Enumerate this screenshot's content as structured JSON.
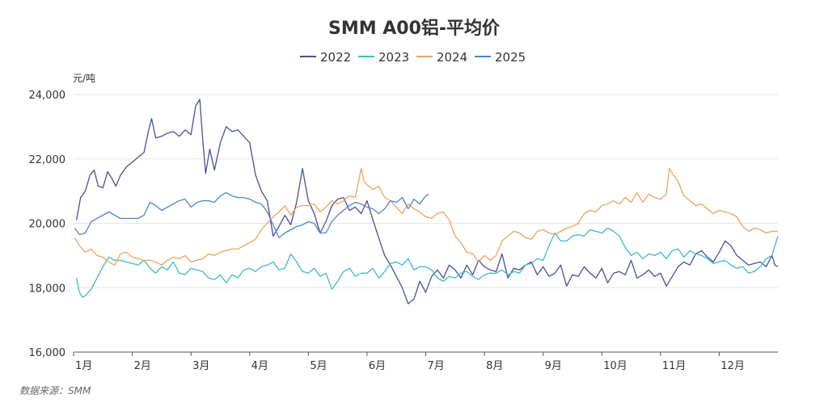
{
  "chart_data": {
    "type": "line",
    "title": "SMM A00铝-平均价",
    "y_unit": "元/吨",
    "ylim": [
      16000,
      24000
    ],
    "y_ticks": [
      16000,
      18000,
      20000,
      22000,
      24000
    ],
    "y_tick_labels": [
      "16,000",
      "18,000",
      "20,000",
      "22,000",
      "24,000"
    ],
    "x_unit": "month",
    "xlim": [
      1,
      13
    ],
    "x_ticks": [
      1,
      2,
      3,
      4,
      5,
      6,
      7,
      8,
      9,
      10,
      11,
      12
    ],
    "x_tick_labels": [
      "1月",
      "2月",
      "3月",
      "4月",
      "5月",
      "6月",
      "7月",
      "8月",
      "9月",
      "10月",
      "11月",
      "12月"
    ],
    "grid": true,
    "legend_position": "top-center",
    "source": "数据来源：SMM",
    "series": [
      {
        "name": "2022",
        "color": "#4a4f9a",
        "x": [
          1.05,
          1.12,
          1.2,
          1.28,
          1.35,
          1.42,
          1.5,
          1.58,
          1.65,
          1.72,
          1.8,
          1.9,
          2.0,
          2.1,
          2.2,
          2.28,
          2.33,
          2.4,
          2.5,
          2.6,
          2.7,
          2.8,
          2.9,
          3.0,
          3.08,
          3.15,
          3.2,
          3.25,
          3.32,
          3.4,
          3.5,
          3.6,
          3.7,
          3.8,
          3.9,
          4.0,
          4.1,
          4.2,
          4.3,
          4.4,
          4.5,
          4.6,
          4.7,
          4.8,
          4.9,
          5.0,
          5.1,
          5.2,
          5.3,
          5.4,
          5.5,
          5.6,
          5.7,
          5.8,
          5.9,
          6.0,
          6.1,
          6.2,
          6.3,
          6.4,
          6.5,
          6.6,
          6.7,
          6.8,
          6.9,
          7.0,
          7.1,
          7.2,
          7.3,
          7.4,
          7.5,
          7.6,
          7.7,
          7.8,
          7.9,
          8.0,
          8.1,
          8.2,
          8.3,
          8.4,
          8.5,
          8.6,
          8.7,
          8.8,
          8.9,
          9.0,
          9.1,
          9.2,
          9.3,
          9.4,
          9.5,
          9.6,
          9.7,
          9.8,
          9.9,
          10.0,
          10.1,
          10.2,
          10.3,
          10.4,
          10.5,
          10.6,
          10.7,
          10.8,
          10.9,
          11.0,
          11.1,
          11.2,
          11.3,
          11.4,
          11.5,
          11.6,
          11.7,
          11.8,
          11.9,
          12.0,
          12.1,
          12.2,
          12.3,
          12.4,
          12.5,
          12.6,
          12.7,
          12.8,
          12.9,
          12.95,
          13.0
        ],
        "values": [
          20100,
          20800,
          21000,
          21500,
          21650,
          21150,
          21100,
          21600,
          21400,
          21150,
          21500,
          21750,
          21900,
          22050,
          22200,
          22900,
          23250,
          22650,
          22700,
          22800,
          22850,
          22700,
          22900,
          22750,
          23650,
          23850,
          22600,
          21550,
          22300,
          21650,
          22500,
          23000,
          22850,
          22900,
          22700,
          22500,
          21500,
          21000,
          20700,
          19600,
          19900,
          20250,
          19950,
          20650,
          21700,
          20700,
          20300,
          19700,
          20050,
          20550,
          20750,
          20800,
          20400,
          20500,
          20300,
          20700,
          20100,
          19550,
          19000,
          18700,
          18350,
          18000,
          17500,
          17650,
          18200,
          17850,
          18350,
          18550,
          18300,
          18700,
          18550,
          18300,
          18700,
          18400,
          18850,
          18650,
          18550,
          18500,
          19050,
          18300,
          18600,
          18550,
          18700,
          18800,
          18400,
          18650,
          18350,
          18450,
          18700,
          18050,
          18400,
          18350,
          18650,
          18450,
          18300,
          18600,
          18150,
          18450,
          18500,
          18400,
          18850,
          18300,
          18400,
          18550,
          18350,
          18450,
          18050,
          18350,
          18650,
          18800,
          18700,
          19050,
          19150,
          18950,
          18800,
          19100,
          19450,
          19300,
          19000,
          18850,
          18700,
          18750,
          18800,
          18650,
          19000,
          18700,
          18650
        ]
      },
      {
        "name": "2023",
        "color": "#40b9c6",
        "x": [
          1.05,
          1.1,
          1.15,
          1.2,
          1.3,
          1.4,
          1.5,
          1.6,
          1.7,
          1.8,
          1.9,
          2.0,
          2.1,
          2.2,
          2.3,
          2.4,
          2.5,
          2.6,
          2.7,
          2.8,
          2.9,
          3.0,
          3.1,
          3.2,
          3.3,
          3.4,
          3.5,
          3.6,
          3.7,
          3.8,
          3.9,
          4.0,
          4.1,
          4.2,
          4.3,
          4.4,
          4.5,
          4.6,
          4.7,
          4.8,
          4.9,
          5.0,
          5.1,
          5.2,
          5.3,
          5.4,
          5.5,
          5.6,
          5.7,
          5.8,
          5.9,
          6.0,
          6.1,
          6.2,
          6.3,
          6.4,
          6.5,
          6.6,
          6.7,
          6.8,
          6.9,
          7.0,
          7.1,
          7.2,
          7.3,
          7.4,
          7.5,
          7.6,
          7.7,
          7.8,
          7.9,
          8.0,
          8.1,
          8.2,
          8.3,
          8.4,
          8.5,
          8.6,
          8.7,
          8.8,
          8.9,
          9.0,
          9.1,
          9.2,
          9.3,
          9.4,
          9.5,
          9.6,
          9.7,
          9.8,
          9.9,
          10.0,
          10.1,
          10.2,
          10.3,
          10.4,
          10.5,
          10.6,
          10.7,
          10.8,
          10.9,
          11.0,
          11.1,
          11.2,
          11.3,
          11.4,
          11.5,
          11.6,
          11.7,
          11.8,
          11.9,
          12.0,
          12.1,
          12.2,
          12.3,
          12.4,
          12.5,
          12.6,
          12.7,
          12.8,
          12.9,
          13.0
        ],
        "values": [
          18300,
          17850,
          17700,
          17750,
          17950,
          18300,
          18650,
          18950,
          18850,
          18850,
          18800,
          18750,
          18700,
          18850,
          18600,
          18450,
          18650,
          18550,
          18800,
          18450,
          18400,
          18600,
          18550,
          18500,
          18300,
          18250,
          18400,
          18150,
          18400,
          18300,
          18550,
          18600,
          18500,
          18650,
          18700,
          18800,
          18550,
          18600,
          19050,
          18800,
          18500,
          18450,
          18600,
          18350,
          18450,
          17950,
          18200,
          18500,
          18600,
          18350,
          18450,
          18450,
          18600,
          18300,
          18500,
          18750,
          18800,
          18700,
          18900,
          18550,
          18650,
          18650,
          18550,
          18300,
          18200,
          18350,
          18300,
          18450,
          18500,
          18350,
          18250,
          18400,
          18450,
          18450,
          18550,
          18400,
          18500,
          18450,
          18700,
          18750,
          18900,
          18850,
          19300,
          19700,
          19450,
          19450,
          19600,
          19650,
          19600,
          19800,
          19750,
          19700,
          19850,
          19750,
          19600,
          19250,
          19000,
          19100,
          18900,
          19050,
          19000,
          19100,
          18900,
          19150,
          19200,
          18950,
          19150,
          19050,
          19000,
          18900,
          18750,
          18800,
          18850,
          18700,
          18600,
          18650,
          18450,
          18500,
          18650,
          18900,
          19000,
          19600
        ]
      },
      {
        "name": "2024",
        "color": "#f0a35a",
        "x": [
          1.02,
          1.1,
          1.2,
          1.3,
          1.4,
          1.5,
          1.6,
          1.7,
          1.8,
          1.9,
          2.0,
          2.1,
          2.2,
          2.3,
          2.4,
          2.5,
          2.6,
          2.7,
          2.8,
          2.9,
          3.0,
          3.1,
          3.2,
          3.3,
          3.4,
          3.5,
          3.6,
          3.7,
          3.8,
          3.9,
          4.0,
          4.1,
          4.2,
          4.3,
          4.4,
          4.5,
          4.6,
          4.7,
          4.8,
          4.9,
          5.0,
          5.1,
          5.2,
          5.3,
          5.4,
          5.5,
          5.6,
          5.7,
          5.8,
          5.9,
          5.95,
          6.0,
          6.1,
          6.2,
          6.3,
          6.4,
          6.5,
          6.6,
          6.7,
          6.8,
          6.9,
          7.0,
          7.1,
          7.2,
          7.3,
          7.4,
          7.5,
          7.6,
          7.7,
          7.8,
          7.9,
          8.0,
          8.1,
          8.2,
          8.3,
          8.4,
          8.5,
          8.6,
          8.7,
          8.8,
          8.9,
          9.0,
          9.1,
          9.2,
          9.3,
          9.4,
          9.5,
          9.6,
          9.7,
          9.8,
          9.9,
          10.0,
          10.1,
          10.2,
          10.3,
          10.4,
          10.5,
          10.6,
          10.7,
          10.8,
          10.9,
          11.0,
          11.1,
          11.15,
          11.2,
          11.3,
          11.4,
          11.5,
          11.6,
          11.7,
          11.8,
          11.9,
          12.0,
          12.1,
          12.2,
          12.3,
          12.4,
          12.5,
          12.6,
          12.7,
          12.8,
          12.9,
          13.0
        ],
        "values": [
          19550,
          19300,
          19100,
          19200,
          19000,
          18950,
          18800,
          18700,
          19050,
          19100,
          18950,
          18900,
          18850,
          18850,
          18800,
          18700,
          18850,
          18950,
          18900,
          19000,
          18800,
          18850,
          18900,
          19050,
          19000,
          19100,
          19150,
          19200,
          19200,
          19300,
          19400,
          19500,
          19800,
          20000,
          20200,
          20350,
          20550,
          20250,
          20500,
          20550,
          20550,
          20600,
          20350,
          20500,
          20700,
          20600,
          20700,
          20850,
          20800,
          21700,
          21300,
          21200,
          21050,
          21150,
          20800,
          20700,
          20500,
          20300,
          20600,
          20450,
          20350,
          20200,
          20150,
          20300,
          20350,
          20100,
          19600,
          19400,
          19100,
          19050,
          18800,
          19000,
          18850,
          19000,
          19450,
          19600,
          19750,
          19700,
          19550,
          19500,
          19750,
          19800,
          19700,
          19650,
          19750,
          19850,
          19900,
          20000,
          20300,
          20400,
          20350,
          20550,
          20600,
          20700,
          20600,
          20800,
          20650,
          20950,
          20650,
          20900,
          20800,
          20750,
          20900,
          21700,
          21550,
          21300,
          20850,
          20700,
          20550,
          20600,
          20450,
          20300,
          20400,
          20350,
          20300,
          20200,
          19900,
          19750,
          19850,
          19800,
          19700,
          19750,
          19750
        ]
      },
      {
        "name": "2025",
        "color": "#4a86cf",
        "x": [
          1.02,
          1.1,
          1.2,
          1.3,
          1.4,
          1.5,
          1.6,
          1.7,
          1.8,
          1.9,
          2.0,
          2.1,
          2.2,
          2.3,
          2.4,
          2.5,
          2.6,
          2.7,
          2.8,
          2.9,
          3.0,
          3.1,
          3.2,
          3.3,
          3.4,
          3.5,
          3.6,
          3.7,
          3.8,
          3.9,
          4.0,
          4.1,
          4.2,
          4.3,
          4.4,
          4.5,
          4.6,
          4.7,
          4.8,
          4.9,
          5.0,
          5.1,
          5.2,
          5.3,
          5.4,
          5.5,
          5.6,
          5.7,
          5.8,
          5.9,
          6.0,
          6.1,
          6.2,
          6.3,
          6.4,
          6.5,
          6.6,
          6.7,
          6.8,
          6.9,
          7.0,
          7.05
        ],
        "values": [
          19850,
          19650,
          19700,
          20050,
          20150,
          20250,
          20350,
          20250,
          20150,
          20150,
          20150,
          20150,
          20250,
          20650,
          20550,
          20400,
          20500,
          20600,
          20700,
          20750,
          20500,
          20650,
          20700,
          20700,
          20650,
          20850,
          20950,
          20850,
          20800,
          20800,
          20750,
          20650,
          20600,
          20350,
          19950,
          19550,
          19700,
          19800,
          19900,
          19950,
          20050,
          20000,
          19700,
          19700,
          20050,
          20250,
          20400,
          20550,
          20650,
          20600,
          20500,
          20450,
          20300,
          20450,
          20700,
          20650,
          20800,
          20450,
          20750,
          20600,
          20850,
          20900
        ]
      }
    ]
  }
}
